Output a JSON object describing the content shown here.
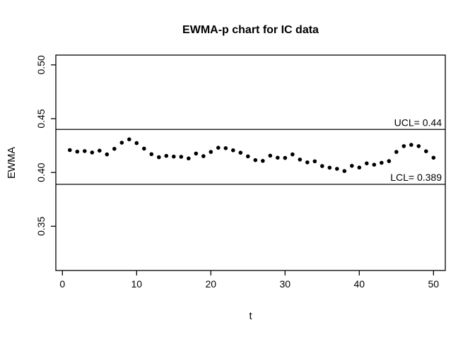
{
  "chart_data": {
    "type": "scatter",
    "title": "EWMA-p chart for IC data",
    "xlabel": "t",
    "ylabel": "EWMA",
    "x": [
      1,
      2,
      3,
      4,
      5,
      6,
      7,
      8,
      9,
      10,
      11,
      12,
      13,
      14,
      15,
      16,
      17,
      18,
      19,
      20,
      21,
      22,
      23,
      24,
      25,
      26,
      27,
      28,
      29,
      30,
      31,
      32,
      33,
      34,
      35,
      36,
      37,
      38,
      39,
      40,
      41,
      42,
      43,
      44,
      45,
      46,
      47,
      48,
      49,
      50
    ],
    "y": [
      0.4208,
      0.4194,
      0.4199,
      0.4186,
      0.4203,
      0.4168,
      0.422,
      0.4277,
      0.4308,
      0.4273,
      0.4222,
      0.417,
      0.4142,
      0.4154,
      0.4148,
      0.4146,
      0.4131,
      0.4176,
      0.4152,
      0.4191,
      0.423,
      0.4226,
      0.4206,
      0.4184,
      0.415,
      0.4115,
      0.4108,
      0.4156,
      0.4137,
      0.4135,
      0.4168,
      0.412,
      0.4094,
      0.4104,
      0.406,
      0.4045,
      0.4034,
      0.4013,
      0.4062,
      0.4046,
      0.4085,
      0.4072,
      0.409,
      0.4106,
      0.4191,
      0.4245,
      0.4257,
      0.4245,
      0.4197,
      0.4137
    ],
    "ucl": {
      "value": 0.44,
      "label": "UCL= 0.44"
    },
    "lcl": {
      "value": 0.389,
      "label": "LCL= 0.389"
    },
    "x_ticks": [
      0,
      10,
      20,
      30,
      40,
      50
    ],
    "y_ticks": [
      0.35,
      0.4,
      0.45,
      0.5
    ],
    "y_tick_labels": [
      "0.35",
      "0.40",
      "0.45",
      "0.50"
    ],
    "xlim": [
      -0.886,
      51.59
    ],
    "ylim": [
      0.3089,
      0.5091
    ],
    "grid": false,
    "legend": "none",
    "point_color": "#000000",
    "line_color": "#000000",
    "background": "#ffffff"
  }
}
